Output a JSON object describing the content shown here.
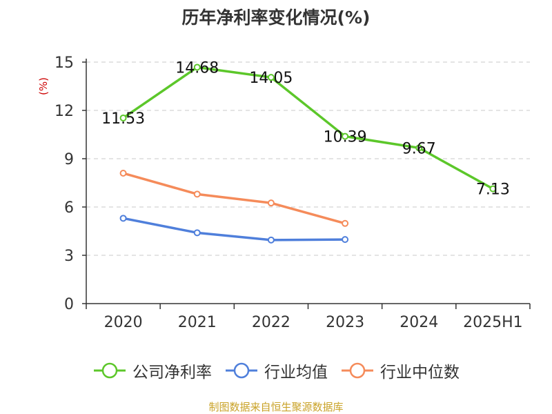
{
  "chart_data": {
    "type": "line",
    "title": "历年净利率变化情况(%)",
    "ylabel": "(%)",
    "categories": [
      "2020",
      "2021",
      "2022",
      "2023",
      "2024",
      "2025H1"
    ],
    "ylim": [
      0,
      15
    ],
    "yticks": [
      0,
      3,
      6,
      9,
      12,
      15
    ],
    "grid": "horizontal dashed",
    "legend_position": "bottom",
    "series": [
      {
        "name": "公司净利率",
        "color": "#5cc72a",
        "labeled": true,
        "values": [
          11.53,
          14.68,
          14.05,
          10.39,
          9.67,
          7.13
        ]
      },
      {
        "name": "行业均值",
        "color": "#4f7fdb",
        "labeled": false,
        "values": [
          5.3,
          4.4,
          3.95,
          3.98,
          null,
          null
        ]
      },
      {
        "name": "行业中位数",
        "color": "#f58b5a",
        "labeled": false,
        "values": [
          8.1,
          6.8,
          6.25,
          4.98,
          null,
          null
        ]
      }
    ]
  },
  "footer": {
    "source": "制图数据来自恒生聚源数据库"
  },
  "colors": {
    "ylabel": "#cc0000",
    "axis": "#333333",
    "grid": "#c8c8c8",
    "source": "#c9a227"
  }
}
